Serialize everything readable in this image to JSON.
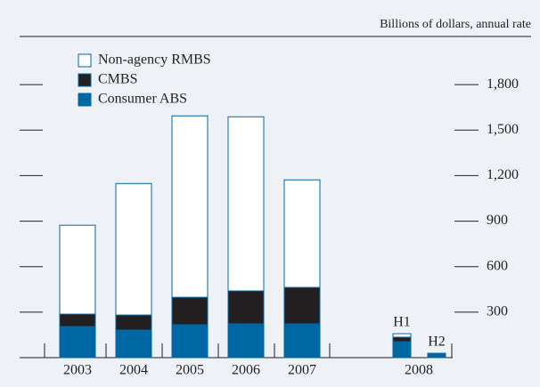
{
  "chart_data": {
    "type": "stacked_bar",
    "unit_label": "Billions of dollars, annual rate",
    "categories": [
      "2003",
      "2004",
      "2005",
      "2006",
      "2007",
      "H1",
      "H2"
    ],
    "group_label": "2008",
    "series": [
      {
        "name": "Consumer ABS",
        "color": "#0067a5",
        "values": [
          205,
          182,
          217,
          223,
          223,
          105,
          18
        ]
      },
      {
        "name": "CMBS",
        "color": "#231f20",
        "values": [
          82,
          99,
          181,
          217,
          240,
          30,
          5
        ]
      },
      {
        "name": "Non-agency RMBS",
        "color": "#ffffff",
        "values": [
          586,
          867,
          1196,
          1148,
          709,
          23,
          6
        ]
      }
    ],
    "ylim": [
      0,
      2100
    ],
    "yticks": [
      300,
      600,
      900,
      {
        "value": 1200,
        "label": "1,200"
      },
      {
        "value": 1500,
        "label": "1,500"
      },
      {
        "value": 1800,
        "label": "1,800"
      }
    ]
  }
}
